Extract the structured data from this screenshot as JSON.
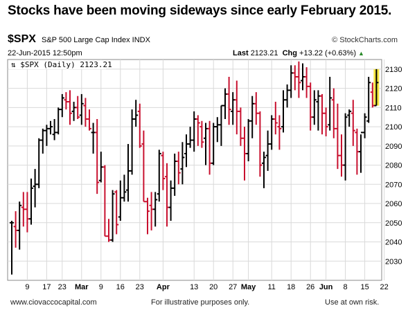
{
  "headline": "Stocks have been moving sideways since early February 2015.",
  "header": {
    "ticker": "$SPX",
    "description": "S&P 500 Large Cap Index INDX",
    "brand": "© StockCharts.com",
    "date": "22-Jun-2015 12:50pm",
    "last_label": "Last",
    "last_value": "2123.21",
    "chg_label": "Chg",
    "chg_value": "+13.22 (+0.63%)",
    "chg_arrow": "▲"
  },
  "footer": {
    "left": "www.ciovaccocapital.com",
    "middle": "For illustrative purposes only.",
    "right": "Use at own risk."
  },
  "colors": {
    "up": "#000000",
    "down": "#c8102e",
    "highlight": "#f5e642",
    "grid": "#d9d9d9"
  },
  "chart_data": {
    "type": "ohlc",
    "legend": "$SPX (Daily) 2123.21",
    "ylim": [
      2020,
      2135
    ],
    "yticks": [
      2030,
      2040,
      2050,
      2060,
      2070,
      2080,
      2090,
      2100,
      2110,
      2120,
      2130
    ],
    "xtick_labels": [
      {
        "label": "9",
        "bar": 4,
        "bold": false
      },
      {
        "label": "17",
        "bar": 9,
        "bold": false
      },
      {
        "label": "23",
        "bar": 13,
        "bold": false
      },
      {
        "label": "Mar",
        "bar": 18,
        "bold": true
      },
      {
        "label": "9",
        "bar": 23,
        "bold": false
      },
      {
        "label": "16",
        "bar": 28,
        "bold": false
      },
      {
        "label": "23",
        "bar": 33,
        "bold": false
      },
      {
        "label": "Apr",
        "bar": 39,
        "bold": true
      },
      {
        "label": "13",
        "bar": 47,
        "bold": false
      },
      {
        "label": "20",
        "bar": 52,
        "bold": false
      },
      {
        "label": "27",
        "bar": 57,
        "bold": false
      },
      {
        "label": "May",
        "bar": 61,
        "bold": true
      },
      {
        "label": "11",
        "bar": 67,
        "bold": false
      },
      {
        "label": "18",
        "bar": 72,
        "bold": false
      },
      {
        "label": "26",
        "bar": 77,
        "bold": false
      },
      {
        "label": "Jun",
        "bar": 81,
        "bold": true
      },
      {
        "label": "8",
        "bar": 86,
        "bold": false
      },
      {
        "label": "15",
        "bar": 91,
        "bold": false
      },
      {
        "label": "22",
        "bar": 96,
        "bold": false
      }
    ],
    "bars": [
      [
        2050,
        2051,
        2023,
        2050
      ],
      [
        2048,
        2056,
        2037,
        2046
      ],
      [
        2046,
        2061,
        2036,
        2059
      ],
      [
        2058,
        2066,
        2048,
        2057
      ],
      [
        2057,
        2066,
        2045,
        2052
      ],
      [
        2052,
        2073,
        2049,
        2068
      ],
      [
        2069,
        2078,
        2058,
        2070
      ],
      [
        2070,
        2094,
        2068,
        2093
      ],
      [
        2093,
        2099,
        2086,
        2098
      ],
      [
        2098,
        2101,
        2090,
        2099
      ],
      [
        2099,
        2103,
        2096,
        2100
      ],
      [
        2096,
        2104,
        2093,
        2097
      ],
      [
        2097,
        2110,
        2096,
        2109
      ],
      [
        2109,
        2117,
        2105,
        2115
      ],
      [
        2114,
        2118,
        2109,
        2113
      ],
      [
        2113,
        2119,
        2101,
        2107
      ],
      [
        2108,
        2113,
        2103,
        2110
      ],
      [
        2110,
        2116,
        2104,
        2105
      ],
      [
        2106,
        2117,
        2101,
        2112
      ],
      [
        2111,
        2115,
        2100,
        2104
      ],
      [
        2104,
        2109,
        2098,
        2099
      ],
      [
        2097,
        2102,
        2086,
        2097
      ],
      [
        2097,
        2104,
        2065,
        2071
      ],
      [
        2072,
        2087,
        2071,
        2079
      ],
      [
        2079,
        2080,
        2043,
        2043
      ],
      [
        2043,
        2052,
        2040,
        2041
      ],
      [
        2041,
        2067,
        2040,
        2065
      ],
      [
        2066,
        2067,
        2044,
        2049
      ],
      [
        2053,
        2072,
        2051,
        2063
      ],
      [
        2063,
        2075,
        2061,
        2066
      ],
      [
        2067,
        2091,
        2061,
        2077
      ],
      [
        2077,
        2109,
        2075,
        2104
      ],
      [
        2104,
        2114,
        2100,
        2106
      ],
      [
        2108,
        2112,
        2089,
        2090
      ],
      [
        2091,
        2098,
        2061,
        2061
      ],
      [
        2061,
        2063,
        2044,
        2056
      ],
      [
        2059,
        2066,
        2046,
        2057
      ],
      [
        2057,
        2066,
        2048,
        2062
      ],
      [
        2065,
        2088,
        2061,
        2086
      ],
      [
        2085,
        2087,
        2067,
        2073
      ],
      [
        2074,
        2081,
        2048,
        2058
      ],
      [
        2058,
        2072,
        2051,
        2068
      ],
      [
        2068,
        2086,
        2064,
        2082
      ],
      [
        2082,
        2087,
        2070,
        2076
      ],
      [
        2078,
        2092,
        2070,
        2084
      ],
      [
        2086,
        2096,
        2079,
        2091
      ],
      [
        2091,
        2100,
        2089,
        2093
      ],
      [
        2093,
        2108,
        2087,
        2104
      ],
      [
        2104,
        2106,
        2090,
        2102
      ],
      [
        2100,
        2103,
        2089,
        2092
      ],
      [
        2094,
        2102,
        2080,
        2099
      ],
      [
        2099,
        2103,
        2075,
        2081
      ],
      [
        2081,
        2102,
        2080,
        2100
      ],
      [
        2100,
        2105,
        2092,
        2101
      ],
      [
        2101,
        2111,
        2090,
        2111
      ],
      [
        2111,
        2120,
        2104,
        2117
      ],
      [
        2117,
        2126,
        2101,
        2109
      ],
      [
        2108,
        2118,
        2101,
        2114
      ],
      [
        2114,
        2124,
        2096,
        2108
      ],
      [
        2108,
        2110,
        2090,
        2094
      ],
      [
        2094,
        2100,
        2072,
        2086
      ],
      [
        2086,
        2104,
        2082,
        2103
      ],
      [
        2103,
        2116,
        2094,
        2112
      ],
      [
        2112,
        2118,
        2101,
        2107
      ],
      [
        2107,
        2108,
        2074,
        2080
      ],
      [
        2081,
        2087,
        2068,
        2084
      ],
      [
        2085,
        2098,
        2077,
        2091
      ],
      [
        2091,
        2106,
        2088,
        2104
      ],
      [
        2104,
        2113,
        2096,
        2102
      ],
      [
        2100,
        2106,
        2088,
        2099
      ],
      [
        2100,
        2119,
        2097,
        2114
      ],
      [
        2114,
        2122,
        2110,
        2119
      ],
      [
        2119,
        2132,
        2115,
        2128
      ],
      [
        2128,
        2132,
        2119,
        2126
      ],
      [
        2126,
        2134,
        2115,
        2123
      ],
      [
        2124,
        2133,
        2119,
        2126
      ],
      [
        2126,
        2131,
        2115,
        2121
      ],
      [
        2121,
        2123,
        2098,
        2105
      ],
      [
        2105,
        2119,
        2101,
        2114
      ],
      [
        2113,
        2119,
        2098,
        2116
      ],
      [
        2116,
        2117,
        2096,
        2107
      ],
      [
        2107,
        2110,
        2095,
        2100
      ],
      [
        2101,
        2126,
        2098,
        2115
      ],
      [
        2114,
        2120,
        2094,
        2099
      ],
      [
        2099,
        2112,
        2078,
        2085
      ],
      [
        2085,
        2096,
        2074,
        2080
      ],
      [
        2080,
        2107,
        2072,
        2105
      ],
      [
        2106,
        2109,
        2100,
        2108
      ],
      [
        2107,
        2114,
        2090,
        2098
      ],
      [
        2097,
        2099,
        2075,
        2087
      ],
      [
        2087,
        2096,
        2076,
        2097
      ],
      [
        2097,
        2107,
        2094,
        2105
      ],
      [
        2103,
        2126,
        2102,
        2123
      ],
      [
        2118,
        2123,
        2110,
        2111
      ],
      [
        2111,
        2130,
        2111,
        2123
      ]
    ]
  }
}
